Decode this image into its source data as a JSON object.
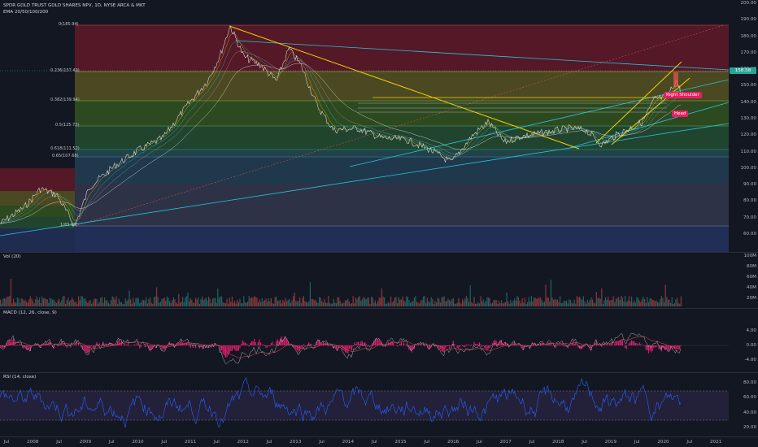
{
  "header": {
    "symbol_title": "SPDR GOLD TRUST GOLD SHARES NPV, 1D, NYSE ARCA & MKT",
    "indicator": "EMA 20/50/100/200"
  },
  "price_axis": {
    "ticks": [
      "200.00",
      "190.00",
      "180.00",
      "170.00",
      "160.00",
      "150.00",
      "140.00",
      "130.00",
      "120.00",
      "110.00",
      "100.00",
      "90.00",
      "80.00",
      "70.00",
      "60.00"
    ],
    "last_price": "158.58"
  },
  "fib_levels": [
    {
      "label": "0(185.94)"
    },
    {
      "label": "0.236(157.49)"
    },
    {
      "label": "0.382(139.94)"
    },
    {
      "label": "0.5(125.73)"
    },
    {
      "label": "0.618(111.52)"
    },
    {
      "label": "0.65(107.68)"
    },
    {
      "label": "1(65.59)"
    }
  ],
  "annotations": {
    "right_shoulder": "Right Shoulder",
    "head": "Head"
  },
  "volume": {
    "title": "Vol (20)",
    "ticks": [
      "100M",
      "80M",
      "60M",
      "40M",
      "20M"
    ]
  },
  "macd": {
    "title": "MACD (12, 26, close, 9)",
    "ticks": [
      "4.00",
      "0.00",
      "-4.00"
    ]
  },
  "rsi": {
    "title": "RSI (14, close)",
    "ticks": [
      "80.00",
      "60.00",
      "40.00",
      "20.00"
    ]
  },
  "time_axis": {
    "labels": [
      "Jul",
      "2008",
      "Jul",
      "2009",
      "Jul",
      "2010",
      "Jul",
      "2011",
      "Jul",
      "2012",
      "Jul",
      "2013",
      "Jul",
      "2014",
      "Jul",
      "2015",
      "Jul",
      "2016",
      "Jul",
      "2017",
      "Jul",
      "2018",
      "Jul",
      "2019",
      "Jul",
      "2020",
      "Jul",
      "2021"
    ]
  },
  "colors": {
    "background": "#131722",
    "up": "#26a69a",
    "down": "#ef5350",
    "trendline": "#f5d000",
    "macd_hist": "#ff1f7a",
    "rsi": "#2962ff"
  }
}
